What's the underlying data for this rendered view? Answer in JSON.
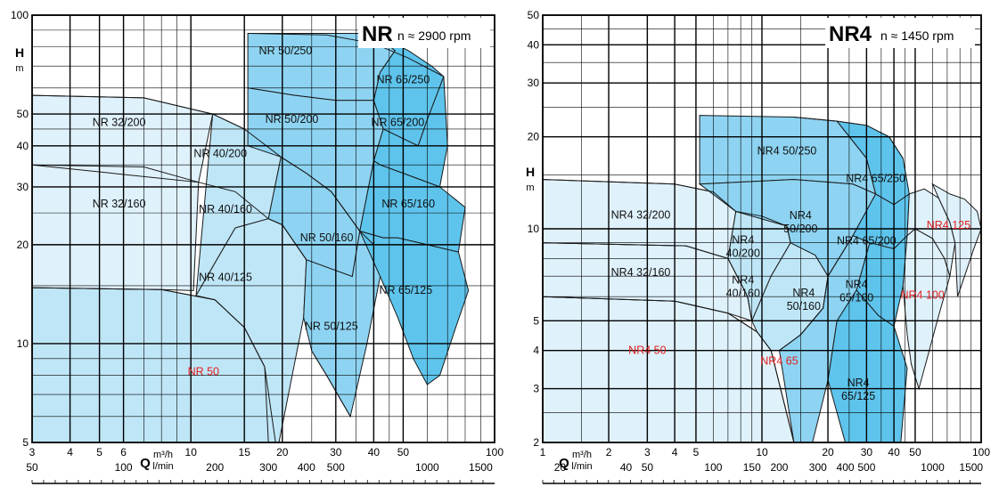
{
  "colors": {
    "fill_light": "#dff1fb",
    "fill_mid": "#bfe6f7",
    "fill_deep": "#8ed4f2",
    "fill_deepest": "#5ec4ec",
    "grid": "#000000",
    "red_label": "#e02020"
  },
  "chart_data": [
    {
      "type": "area",
      "title": "NR",
      "subtitle": "n ≈ 2900 rpm",
      "ylabel": "H",
      "yunit": "m",
      "xlabel": "Q",
      "xunit_top": "m³/h",
      "xunit_bottom": "l/min",
      "yscale": "log",
      "xscale": "log",
      "ylim": [
        5,
        100
      ],
      "xlim": [
        3,
        100
      ],
      "y_ticks": [
        5,
        10,
        20,
        30,
        40,
        50,
        100
      ],
      "x_ticks_m3h": [
        3,
        4,
        5,
        6,
        10,
        15,
        20,
        30,
        40,
        50,
        100
      ],
      "x_ticks_lmin": [
        50,
        100,
        200,
        300,
        400,
        500,
        1000,
        1500
      ],
      "zones": [
        {
          "name": "NR 32/200",
          "label_at": [
            5.8,
            46
          ],
          "red": false
        },
        {
          "name": "NR 32/160",
          "label_at": [
            5.8,
            26
          ],
          "red": false
        },
        {
          "name": "NR 50",
          "label_at": [
            11,
            8
          ],
          "red": true
        },
        {
          "name": "NR 40/200",
          "label_at": [
            12.5,
            37
          ],
          "red": false
        },
        {
          "name": "NR 40/160",
          "label_at": [
            13,
            25
          ],
          "red": false
        },
        {
          "name": "NR 40/125",
          "label_at": [
            13,
            15.5
          ],
          "red": false
        },
        {
          "name": "NR 50/250",
          "label_at": [
            20.5,
            76
          ],
          "red": false
        },
        {
          "name": "NR 50/200",
          "label_at": [
            21.5,
            47
          ],
          "red": false
        },
        {
          "name": "NR 50/160",
          "label_at": [
            28,
            20.5
          ],
          "red": false
        },
        {
          "name": "NR 50/125",
          "label_at": [
            29,
            11
          ],
          "red": false
        },
        {
          "name": "NR 65/250",
          "label_at": [
            50,
            62
          ],
          "red": false
        },
        {
          "name": "NR 65/200",
          "label_at": [
            48,
            46
          ],
          "red": false
        },
        {
          "name": "NR 65/160",
          "label_at": [
            52,
            26
          ],
          "red": false
        },
        {
          "name": "NR 65/125",
          "label_at": [
            51,
            14.2
          ],
          "red": false
        }
      ]
    },
    {
      "type": "area",
      "title": "NR4",
      "subtitle": "n ≈ 1450 rpm",
      "ylabel": "H",
      "yunit": "m",
      "xlabel": "Q",
      "xunit_top": "m³/h",
      "xunit_bottom": "l/min",
      "yscale": "log",
      "xscale": "log",
      "ylim": [
        2,
        50
      ],
      "xlim": [
        1,
        100
      ],
      "y_ticks": [
        2,
        3,
        4,
        5,
        10,
        20,
        30,
        40,
        50
      ],
      "x_ticks_m3h": [
        1,
        2,
        3,
        4,
        5,
        10,
        20,
        30,
        40,
        50,
        100
      ],
      "x_ticks_lmin": [
        20,
        40,
        50,
        100,
        150,
        200,
        300,
        400,
        500,
        1000,
        1500
      ],
      "zones": [
        {
          "name": "NR4 32/200",
          "label_at": [
            2.8,
            10.8
          ],
          "red": false
        },
        {
          "name": "NR4 32/160",
          "label_at": [
            2.8,
            7.0
          ],
          "red": false
        },
        {
          "name": "NR4 50",
          "label_at": [
            3.0,
            3.9
          ],
          "red": true
        },
        {
          "name": "NR4 65",
          "label_at": [
            12,
            3.6
          ],
          "red": true
        },
        {
          "name": "NR4 50/250",
          "label_at": [
            13,
            17.5
          ],
          "red": false
        },
        {
          "name": "NR4\n40/200",
          "label_at": [
            8.2,
            8.8
          ],
          "red": false
        },
        {
          "name": "NR4\n40/160",
          "label_at": [
            8.2,
            6.5
          ],
          "red": false
        },
        {
          "name": "NR4\n50/200",
          "label_at": [
            15,
            10.6
          ],
          "red": false
        },
        {
          "name": "NR4\n50/160",
          "label_at": [
            15.5,
            5.9
          ],
          "red": false
        },
        {
          "name": "NR4 65/250",
          "label_at": [
            33,
            14.2
          ],
          "red": false
        },
        {
          "name": "NR4 65/200",
          "label_at": [
            30,
            8.9
          ],
          "red": false
        },
        {
          "name": "NR4\n65/160",
          "label_at": [
            27,
            6.3
          ],
          "red": false
        },
        {
          "name": "NR4\n65/125",
          "label_at": [
            27.5,
            3.0
          ],
          "red": false
        },
        {
          "name": "NR4 100",
          "label_at": [
            54,
            5.9
          ],
          "red": true
        },
        {
          "name": "NR4 125",
          "label_at": [
            71,
            10.0
          ],
          "red": true
        }
      ]
    }
  ]
}
